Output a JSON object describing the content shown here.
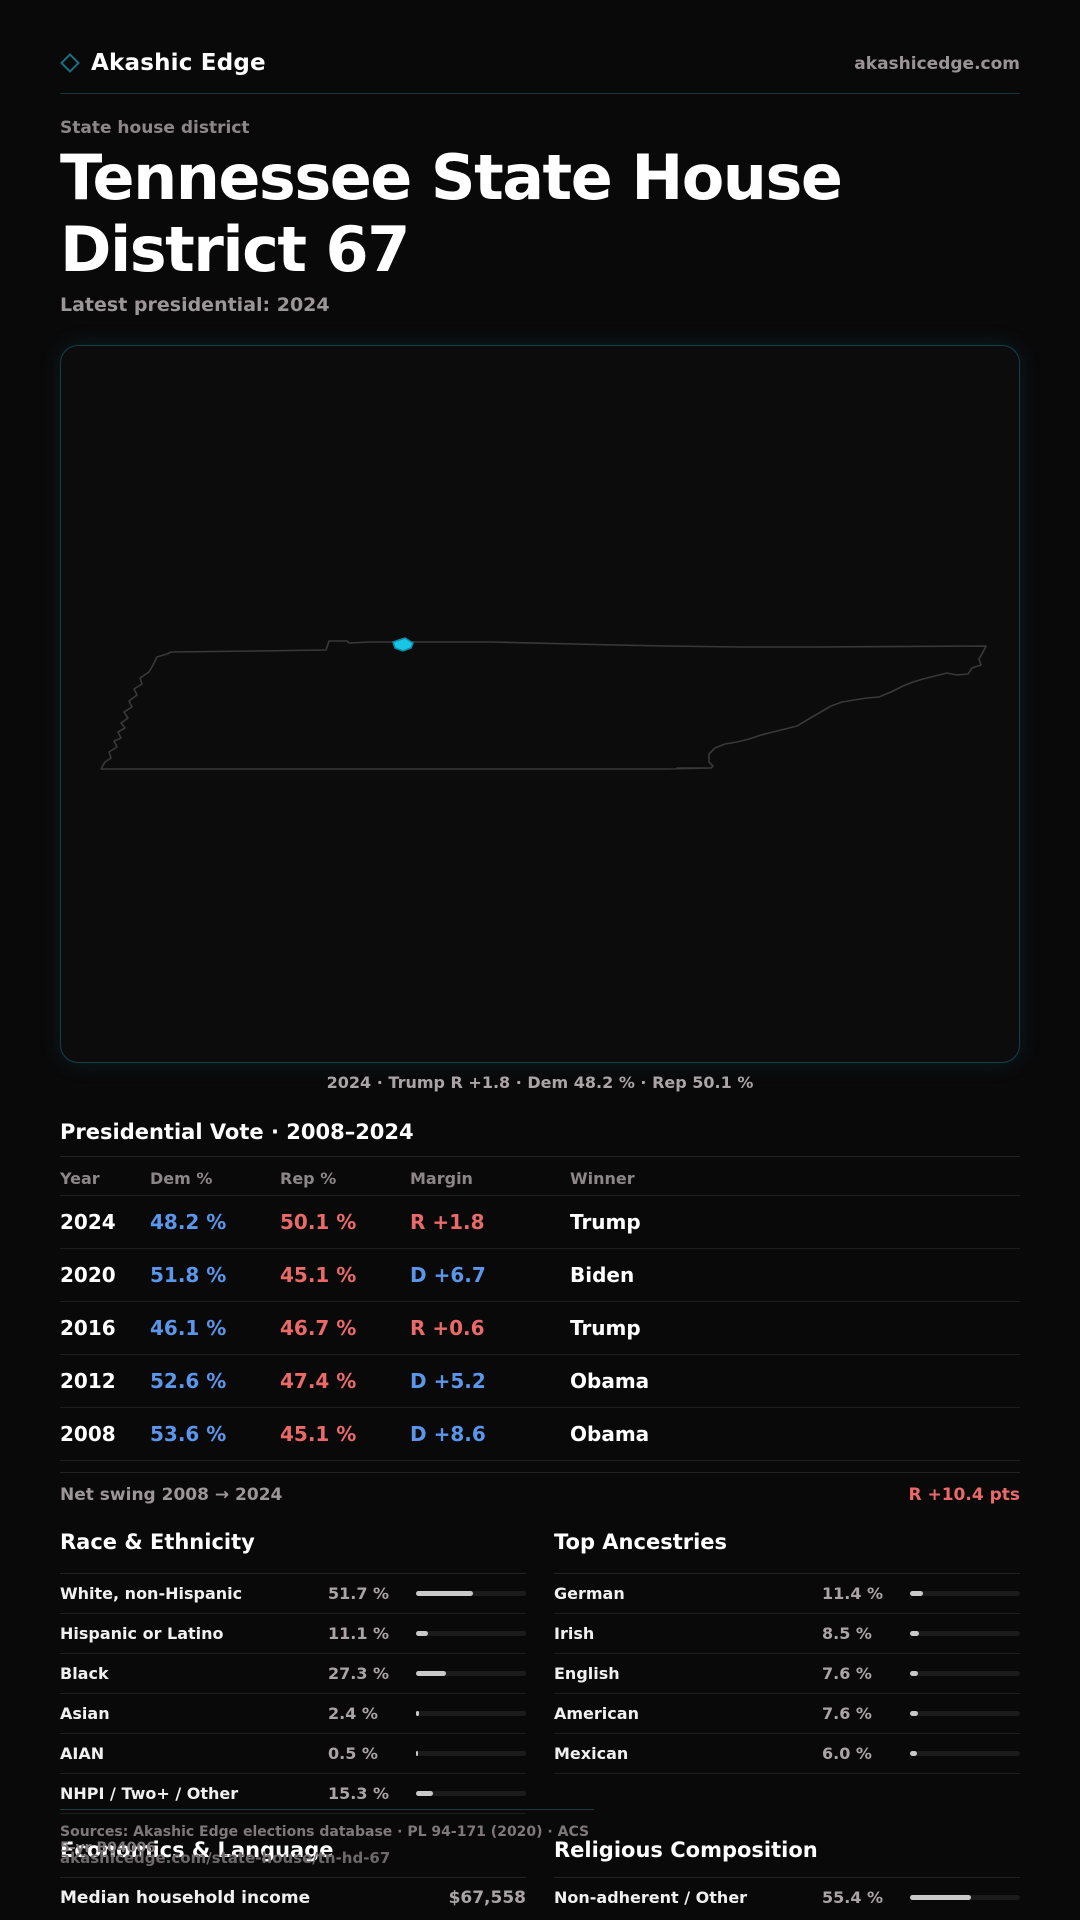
{
  "header": {
    "brand": "Akashic Edge",
    "site": "akashicedge.com"
  },
  "kicker": "State house district",
  "title": "Tennessee State House District 67",
  "latest": "Latest presidential: 2024",
  "map": {
    "caption": "2024 · Trump R +1.8 · Dem 48.2 % · Rep 50.1 %",
    "highlight_color": "#18c6e6"
  },
  "presidential": {
    "title": "Presidential Vote · 2008–2024",
    "columns": [
      "Year",
      "Dem %",
      "Rep %",
      "Margin",
      "Winner"
    ],
    "rows": [
      {
        "year": "2024",
        "dem": "48.2 %",
        "rep": "50.1 %",
        "margin": "R +1.8",
        "margin_party": "R",
        "winner": "Trump"
      },
      {
        "year": "2020",
        "dem": "51.8 %",
        "rep": "45.1 %",
        "margin": "D +6.7",
        "margin_party": "D",
        "winner": "Biden"
      },
      {
        "year": "2016",
        "dem": "46.1 %",
        "rep": "46.7 %",
        "margin": "R +0.6",
        "margin_party": "R",
        "winner": "Trump"
      },
      {
        "year": "2012",
        "dem": "52.6 %",
        "rep": "47.4 %",
        "margin": "D +5.2",
        "margin_party": "D",
        "winner": "Obama"
      },
      {
        "year": "2008",
        "dem": "53.6 %",
        "rep": "45.1 %",
        "margin": "D +8.6",
        "margin_party": "D",
        "winner": "Obama"
      }
    ],
    "swing_label": "Net swing 2008 → 2024",
    "swing_value": "R +10.4 pts"
  },
  "race": {
    "title": "Race & Ethnicity",
    "rows": [
      {
        "label": "White, non-Hispanic",
        "pct": "51.7 %",
        "value": 51.7
      },
      {
        "label": "Hispanic or Latino",
        "pct": "11.1 %",
        "value": 11.1
      },
      {
        "label": "Black",
        "pct": "27.3 %",
        "value": 27.3
      },
      {
        "label": "Asian",
        "pct": "2.4 %",
        "value": 2.4
      },
      {
        "label": "AIAN",
        "pct": "0.5 %",
        "value": 0.5
      },
      {
        "label": "NHPI / Two+ / Other",
        "pct": "15.3 %",
        "value": 15.3
      }
    ]
  },
  "ancestry": {
    "title": "Top Ancestries",
    "rows": [
      {
        "label": "German",
        "pct": "11.4 %",
        "value": 11.4
      },
      {
        "label": "Irish",
        "pct": "8.5 %",
        "value": 8.5
      },
      {
        "label": "English",
        "pct": "7.6 %",
        "value": 7.6
      },
      {
        "label": "American",
        "pct": "7.6 %",
        "value": 7.6
      },
      {
        "label": "Mexican",
        "pct": "6.0 %",
        "value": 6.0
      }
    ]
  },
  "sources": {
    "text": "Sources: Akashic Edge elections database · PL 94-171 (2020) · ACS 5-yr B04006",
    "url": "akashicedge.com/state-house/tn-hd-67"
  },
  "economics": {
    "title": "Economics & Language",
    "rows": [
      {
        "label": "Median household income",
        "value": "$67,558"
      }
    ]
  },
  "religion": {
    "title": "Religious Composition",
    "rows": [
      {
        "label": "Non-adherent / Other",
        "pct": "55.4 %",
        "value": 55.4
      }
    ]
  }
}
